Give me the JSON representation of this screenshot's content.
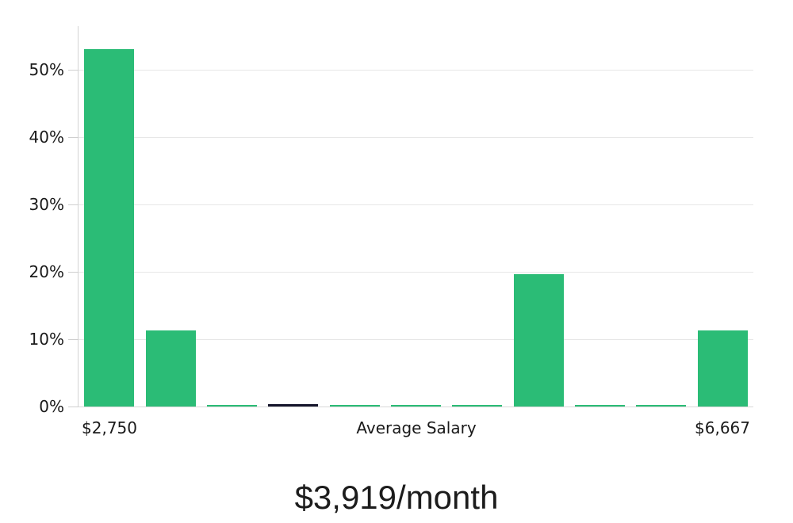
{
  "chart_data": {
    "type": "bar",
    "title": "$3,919/month",
    "xlabel": "Average Salary",
    "first_bar_label": "$2,750",
    "last_bar_label": "$6,667",
    "ylabel": "",
    "ylim": [
      0,
      56.5
    ],
    "grid": true,
    "legend": "none",
    "y_ticks": [
      {
        "value": 0,
        "label": "0%"
      },
      {
        "value": 10,
        "label": "10%"
      },
      {
        "value": 20,
        "label": "20%"
      },
      {
        "value": 30,
        "label": "30%"
      },
      {
        "value": 40,
        "label": "40%"
      },
      {
        "value": 50,
        "label": "50%"
      }
    ],
    "bars": [
      {
        "value": 53.1,
        "color": "#2bbc76"
      },
      {
        "value": 11.3,
        "color": "#2bbc76"
      },
      {
        "value": 0.25,
        "color": "#2bbc76"
      },
      {
        "value": 0.3,
        "color": "#15152b"
      },
      {
        "value": 0.25,
        "color": "#2bbc76"
      },
      {
        "value": 0.25,
        "color": "#2bbc76"
      },
      {
        "value": 0.25,
        "color": "#2bbc76"
      },
      {
        "value": 19.7,
        "color": "#2bbc76"
      },
      {
        "value": 0.25,
        "color": "#2bbc76"
      },
      {
        "value": 0.25,
        "color": "#2bbc76"
      },
      {
        "value": 11.3,
        "color": "#2bbc76"
      }
    ],
    "colors": {
      "bar_green": "#2bbc76",
      "bar_dark": "#15152b",
      "gridline": "#e7e7e7",
      "axis": "#d4d4d4",
      "text": "#1a1a1a"
    }
  }
}
